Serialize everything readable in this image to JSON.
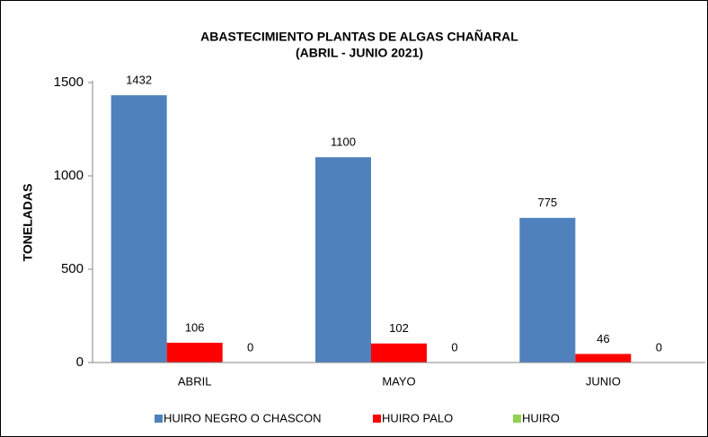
{
  "chart_data": {
    "type": "bar",
    "title": "ABASTECIMIENTO PLANTAS DE ALGAS CHAÑARAL",
    "subtitle": "(ABRIL - JUNIO 2021)",
    "y_label": "TONELADAS",
    "categories": [
      "ABRIL",
      "MAYO",
      "JUNIO"
    ],
    "series": [
      {
        "name": "HUIRO NEGRO O CHASCON",
        "color": "#4f81bd",
        "values": [
          1432,
          1100,
          775
        ]
      },
      {
        "name": "HUIRO PALO",
        "color": "#ff0000",
        "values": [
          106,
          102,
          46
        ]
      },
      {
        "name": "HUIRO",
        "color": "#92d050",
        "values": [
          0,
          0,
          0
        ]
      }
    ],
    "ylim": [
      0,
      1500
    ],
    "yticks": [
      0,
      500,
      1000,
      1500
    ],
    "grid": false,
    "legend": "bottom"
  }
}
